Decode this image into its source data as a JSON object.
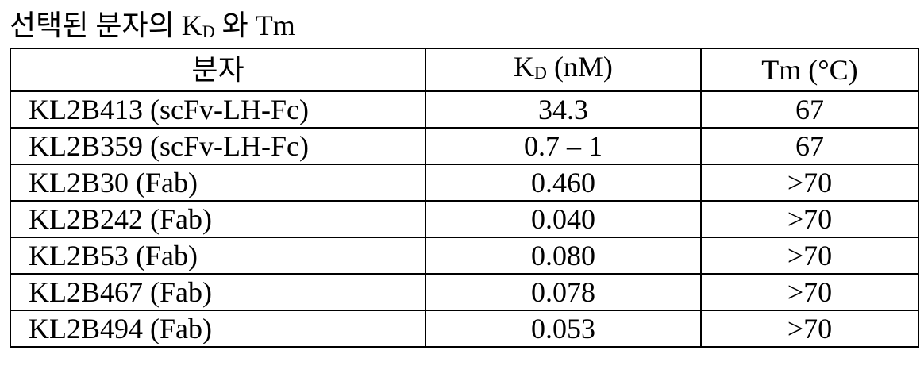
{
  "caption": {
    "prefix": "선택된 분자의 K",
    "subscript": "D",
    "suffix": " 와 Tm"
  },
  "table": {
    "headers": {
      "molecule": "분자",
      "kd_main": "K",
      "kd_sub": "D",
      "kd_unit": " (nM)",
      "tm": "Tm (°C)"
    },
    "rows": [
      {
        "molecule": "KL2B413 (scFv-LH-Fc)",
        "kd": "34.3",
        "tm": "67"
      },
      {
        "molecule": "KL2B359 (scFv-LH-Fc)",
        "kd": "0.7 – 1",
        "tm": "67"
      },
      {
        "molecule": "KL2B30 (Fab)",
        "kd": "0.460",
        "tm": ">70"
      },
      {
        "molecule": "KL2B242 (Fab)",
        "kd": "0.040",
        "tm": ">70"
      },
      {
        "molecule": "KL2B53 (Fab)",
        "kd": "0.080",
        "tm": ">70"
      },
      {
        "molecule": "KL2B467 (Fab)",
        "kd": "0.078",
        "tm": ">70"
      },
      {
        "molecule": "KL2B494 (Fab)",
        "kd": "0.053",
        "tm": ">70"
      }
    ]
  }
}
